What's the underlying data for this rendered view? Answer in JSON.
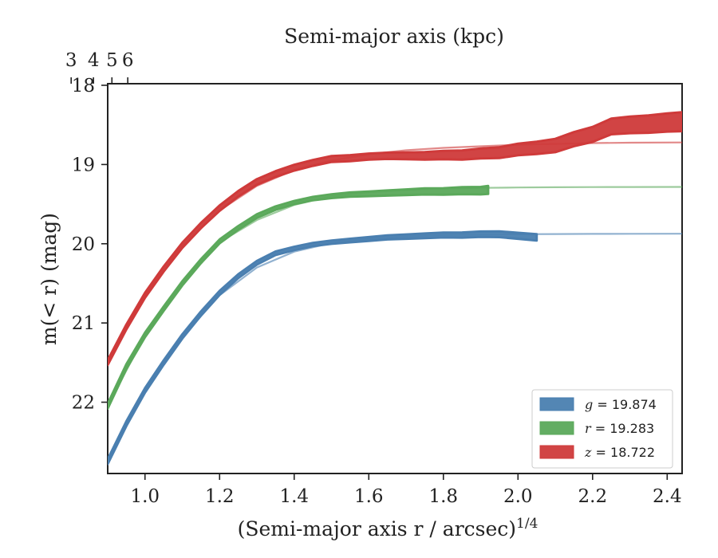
{
  "chart_data": {
    "type": "line",
    "xlabel": "(Semi-major axis r / arcsec)",
    "xlabel_sup": "1/4",
    "ylabel": "m(< r) (mag)",
    "top_xlabel": "Semi-major axis (kpc)",
    "xlim": [
      0.9,
      2.44
    ],
    "ylim": [
      22.9,
      17.98
    ],
    "y_inverted": true,
    "x_ticks": [
      1.0,
      1.2,
      1.4,
      1.6,
      1.8,
      2.0,
      2.2,
      2.4
    ],
    "x_tick_labels": [
      "1.0",
      "1.2",
      "1.4",
      "1.6",
      "1.8",
      "2.0",
      "2.2",
      "2.4"
    ],
    "y_ticks": [
      18,
      19,
      20,
      21,
      22
    ],
    "y_tick_labels": [
      "18",
      "19",
      "20",
      "21",
      "22"
    ],
    "top_ticks_kpc": [
      3,
      4,
      5,
      6
    ],
    "top_tick_labels": [
      "3",
      "4",
      "5",
      "6"
    ],
    "kpc_per_arcsec": 7.25,
    "grid": false,
    "legend_position": "lower-right",
    "series": [
      {
        "name": "g = 19.874",
        "legend_var": "g",
        "legend_value": "= 19.874",
        "color": "#4a7fb0",
        "band_width": [
          0.03,
          0.02,
          0.04
        ],
        "x": [
          0.9,
          0.95,
          1.0,
          1.05,
          1.1,
          1.15,
          1.2,
          1.25,
          1.3,
          1.35,
          1.4,
          1.45,
          1.5,
          1.55,
          1.6,
          1.65,
          1.7,
          1.75,
          1.8,
          1.85,
          1.9,
          1.95,
          2.0,
          2.05
        ],
        "y": [
          22.75,
          22.27,
          21.85,
          21.5,
          21.17,
          20.88,
          20.62,
          20.41,
          20.24,
          20.12,
          20.06,
          20.01,
          19.98,
          19.96,
          19.94,
          19.92,
          19.91,
          19.9,
          19.89,
          19.89,
          19.88,
          19.88,
          19.9,
          19.92
        ],
        "model_x": [
          0.9,
          1.0,
          1.1,
          1.2,
          1.3,
          1.4,
          1.5,
          1.6,
          1.7,
          1.8,
          1.9,
          2.0,
          2.1,
          2.2,
          2.3,
          2.44
        ],
        "model_y": [
          22.75,
          21.86,
          21.18,
          20.65,
          20.3,
          20.1,
          19.99,
          19.94,
          19.91,
          19.89,
          19.885,
          19.88,
          19.878,
          19.876,
          19.875,
          19.874
        ]
      },
      {
        "name": "r = 19.283",
        "legend_var": "r",
        "legend_value": "= 19.283",
        "color": "#5ba95b",
        "band_width": [
          0.03,
          0.02,
          0.05
        ],
        "x": [
          0.9,
          0.95,
          1.0,
          1.05,
          1.1,
          1.15,
          1.2,
          1.25,
          1.3,
          1.35,
          1.4,
          1.45,
          1.5,
          1.55,
          1.6,
          1.65,
          1.7,
          1.75,
          1.8,
          1.85,
          1.9,
          1.92
        ],
        "y": [
          22.05,
          21.55,
          21.15,
          20.82,
          20.5,
          20.22,
          19.97,
          19.8,
          19.65,
          19.55,
          19.48,
          19.43,
          19.4,
          19.38,
          19.37,
          19.36,
          19.35,
          19.34,
          19.34,
          19.33,
          19.33,
          19.32
        ],
        "model_x": [
          0.9,
          1.0,
          1.1,
          1.2,
          1.3,
          1.4,
          1.5,
          1.6,
          1.7,
          1.8,
          1.9,
          2.0,
          2.1,
          2.2,
          2.3,
          2.44
        ],
        "model_y": [
          22.05,
          21.15,
          20.5,
          19.98,
          19.7,
          19.51,
          19.4,
          19.35,
          19.32,
          19.305,
          19.295,
          19.29,
          19.287,
          19.285,
          19.284,
          19.283
        ]
      },
      {
        "name": "z = 18.722",
        "legend_var": "z",
        "legend_value": "= 18.722",
        "color": "#cf3a3a",
        "band_width": [
          0.03,
          0.04,
          0.12
        ],
        "x": [
          0.9,
          0.95,
          1.0,
          1.05,
          1.1,
          1.15,
          1.2,
          1.25,
          1.3,
          1.35,
          1.4,
          1.45,
          1.5,
          1.55,
          1.6,
          1.65,
          1.7,
          1.75,
          1.8,
          1.85,
          1.9,
          1.95,
          2.0,
          2.05,
          2.1,
          2.15,
          2.2,
          2.25,
          2.3,
          2.35,
          2.4,
          2.44
        ],
        "y": [
          21.5,
          21.05,
          20.65,
          20.32,
          20.02,
          19.77,
          19.55,
          19.37,
          19.22,
          19.12,
          19.04,
          18.98,
          18.93,
          18.92,
          18.9,
          18.89,
          18.89,
          18.89,
          18.88,
          18.88,
          18.86,
          18.85,
          18.81,
          18.79,
          18.76,
          18.68,
          18.62,
          18.52,
          18.5,
          18.49,
          18.47,
          18.46
        ],
        "model_x": [
          0.9,
          1.0,
          1.1,
          1.2,
          1.3,
          1.4,
          1.5,
          1.6,
          1.7,
          1.8,
          1.9,
          2.0,
          2.1,
          2.2,
          2.3,
          2.44
        ],
        "model_y": [
          21.5,
          20.66,
          20.03,
          19.58,
          19.27,
          19.07,
          18.95,
          18.87,
          18.82,
          18.79,
          18.77,
          18.75,
          18.74,
          18.73,
          18.725,
          18.722
        ]
      }
    ]
  }
}
